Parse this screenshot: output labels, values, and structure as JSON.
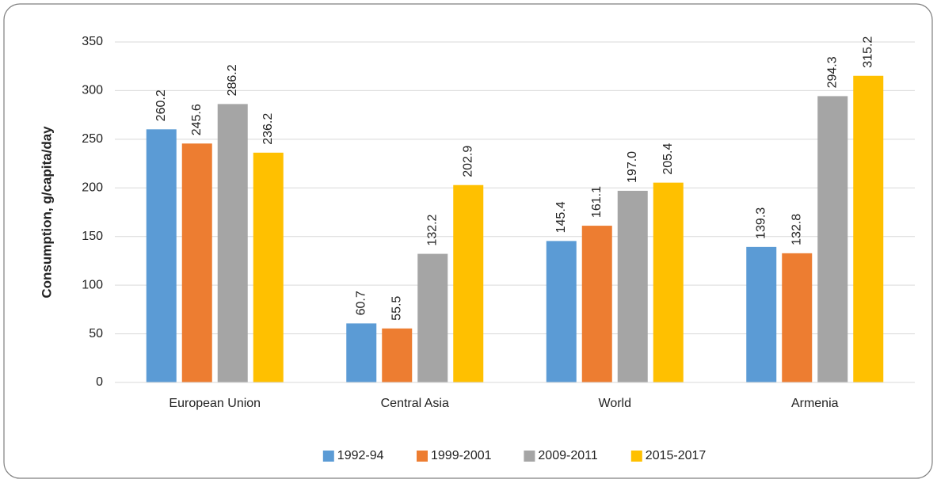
{
  "chart_data": {
    "type": "bar",
    "y_label": "Consumption, g/capita/day",
    "categories": [
      "European Union",
      "Central Asia",
      "World",
      "Armenia"
    ],
    "series": [
      {
        "name": "1992-94",
        "color": "#5b9bd5",
        "values": [
          260.2,
          60.7,
          145.4,
          139.3
        ],
        "value_labels": [
          "260.2",
          "60.7",
          "145.4",
          "139.3"
        ]
      },
      {
        "name": "1999-2001",
        "color": "#ed7d31",
        "values": [
          245.6,
          55.5,
          161.1,
          132.8
        ],
        "value_labels": [
          "245.6",
          "55.5",
          "161.1",
          "132.8"
        ]
      },
      {
        "name": "2009-2011",
        "color": "#a5a5a5",
        "values": [
          286.2,
          132.2,
          197.0,
          294.3
        ],
        "value_labels": [
          "286.2",
          "132.2",
          "197.0",
          "294.3"
        ]
      },
      {
        "name": "2015-2017",
        "color": "#ffc000",
        "values": [
          236.2,
          202.9,
          205.4,
          315.2
        ],
        "value_labels": [
          "236.2",
          "202.9",
          "205.4",
          "315.2"
        ]
      }
    ],
    "ylim": [
      0,
      350
    ],
    "yticks": [
      0,
      50,
      100,
      150,
      200,
      250,
      300,
      350
    ],
    "grid": true,
    "legend": "bottom"
  }
}
